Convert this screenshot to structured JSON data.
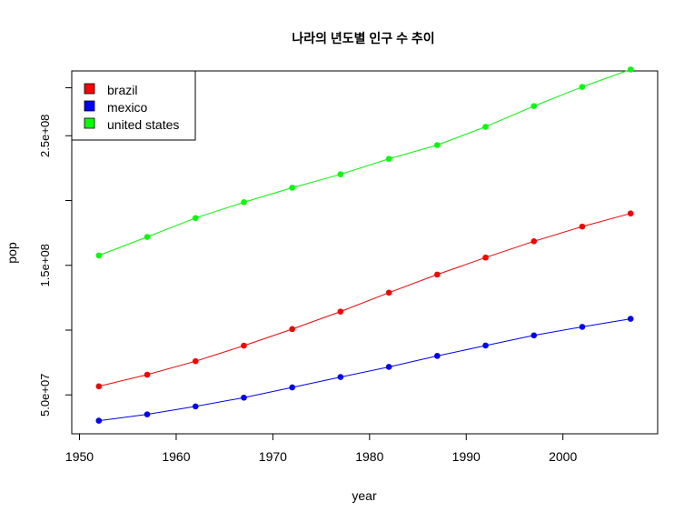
{
  "chart_data": {
    "type": "line",
    "title": "나라의 년도별 인구 수 추이",
    "xlabel": "year",
    "ylabel": "pop",
    "xlim": [
      1949.2,
      2009.8
    ],
    "ylim": [
      20000000,
      300000000
    ],
    "x_ticks": [
      1950,
      1960,
      1970,
      1980,
      1990,
      2000
    ],
    "y_ticks": [
      50000000,
      100000000,
      150000000,
      200000000,
      250000000,
      287000000
    ],
    "y_tick_labels": [
      {
        "value": 50000000,
        "label": "5.0e+07"
      },
      {
        "value": 150000000,
        "label": "1.5e+08"
      },
      {
        "value": 250000000,
        "label": "2.5e+08"
      }
    ],
    "x": [
      1952,
      1957,
      1962,
      1967,
      1972,
      1977,
      1982,
      1987,
      1992,
      1997,
      2002,
      2007
    ],
    "series": [
      {
        "name": "brazil",
        "color": "#ff0000",
        "values": [
          56600000,
          65600000,
          76000000,
          88000000,
          100800000,
          114300000,
          128900000,
          142900000,
          155975000,
          168546000,
          179914000,
          190010000
        ]
      },
      {
        "name": "mexico",
        "color": "#0000ff",
        "values": [
          30100000,
          35000000,
          41100000,
          47900000,
          55800000,
          63800000,
          71600000,
          80100000,
          88100000,
          95900000,
          102500000,
          108700000
        ]
      },
      {
        "name": "united states",
        "color": "#00ff00",
        "values": [
          157600000,
          171900000,
          186500000,
          198700000,
          209900000,
          220200000,
          232200000,
          242800000,
          256900000,
          272900000,
          287700000,
          301100000
        ]
      }
    ],
    "legend_position": "top-left",
    "grid": false
  }
}
